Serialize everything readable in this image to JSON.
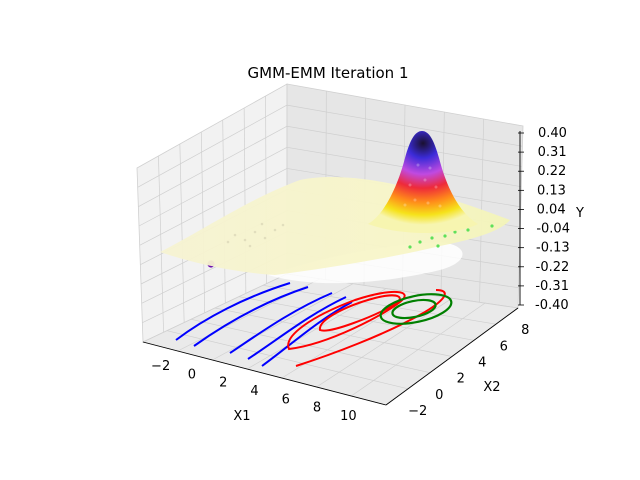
{
  "chart_data": {
    "type": "surface3d",
    "title": "GMM-EMM Iteration 1",
    "xlabel": "X1",
    "ylabel": "X2",
    "zlabel": "Y",
    "x_ticks": [
      "−2",
      "0",
      "2",
      "4",
      "6",
      "8",
      "10"
    ],
    "y_ticks": [
      "−2",
      "0",
      "2",
      "4",
      "6",
      "8"
    ],
    "z_ticks": [
      "0.40",
      "0.31",
      "0.22",
      "0.13",
      "0.04",
      "-0.04",
      "-0.13",
      "-0.22",
      "-0.31",
      "-0.40"
    ],
    "xlim": [
      -3,
      11
    ],
    "ylim": [
      -3,
      9
    ],
    "zlim": [
      -0.4,
      0.4
    ],
    "grid": true,
    "surface": {
      "peak": {
        "x1": 8,
        "x2": 6.5,
        "y": 0.4
      },
      "colormap": "gnuplot2-like (white, yellow, red, magenta, blue, black)"
    },
    "contour_series": [
      {
        "color": "#0000ff",
        "center": {
          "x1": 2,
          "x2": 0
        }
      },
      {
        "color": "#ff0000",
        "center": {
          "x1": 8,
          "x2": 3
        }
      },
      {
        "color": "#008000",
        "center": {
          "x1": 10,
          "x2": 4.5
        }
      }
    ],
    "points": [
      {
        "x1": 1.0,
        "x2": 6.5,
        "y": -0.08,
        "color": "#6a0dad"
      }
    ]
  }
}
